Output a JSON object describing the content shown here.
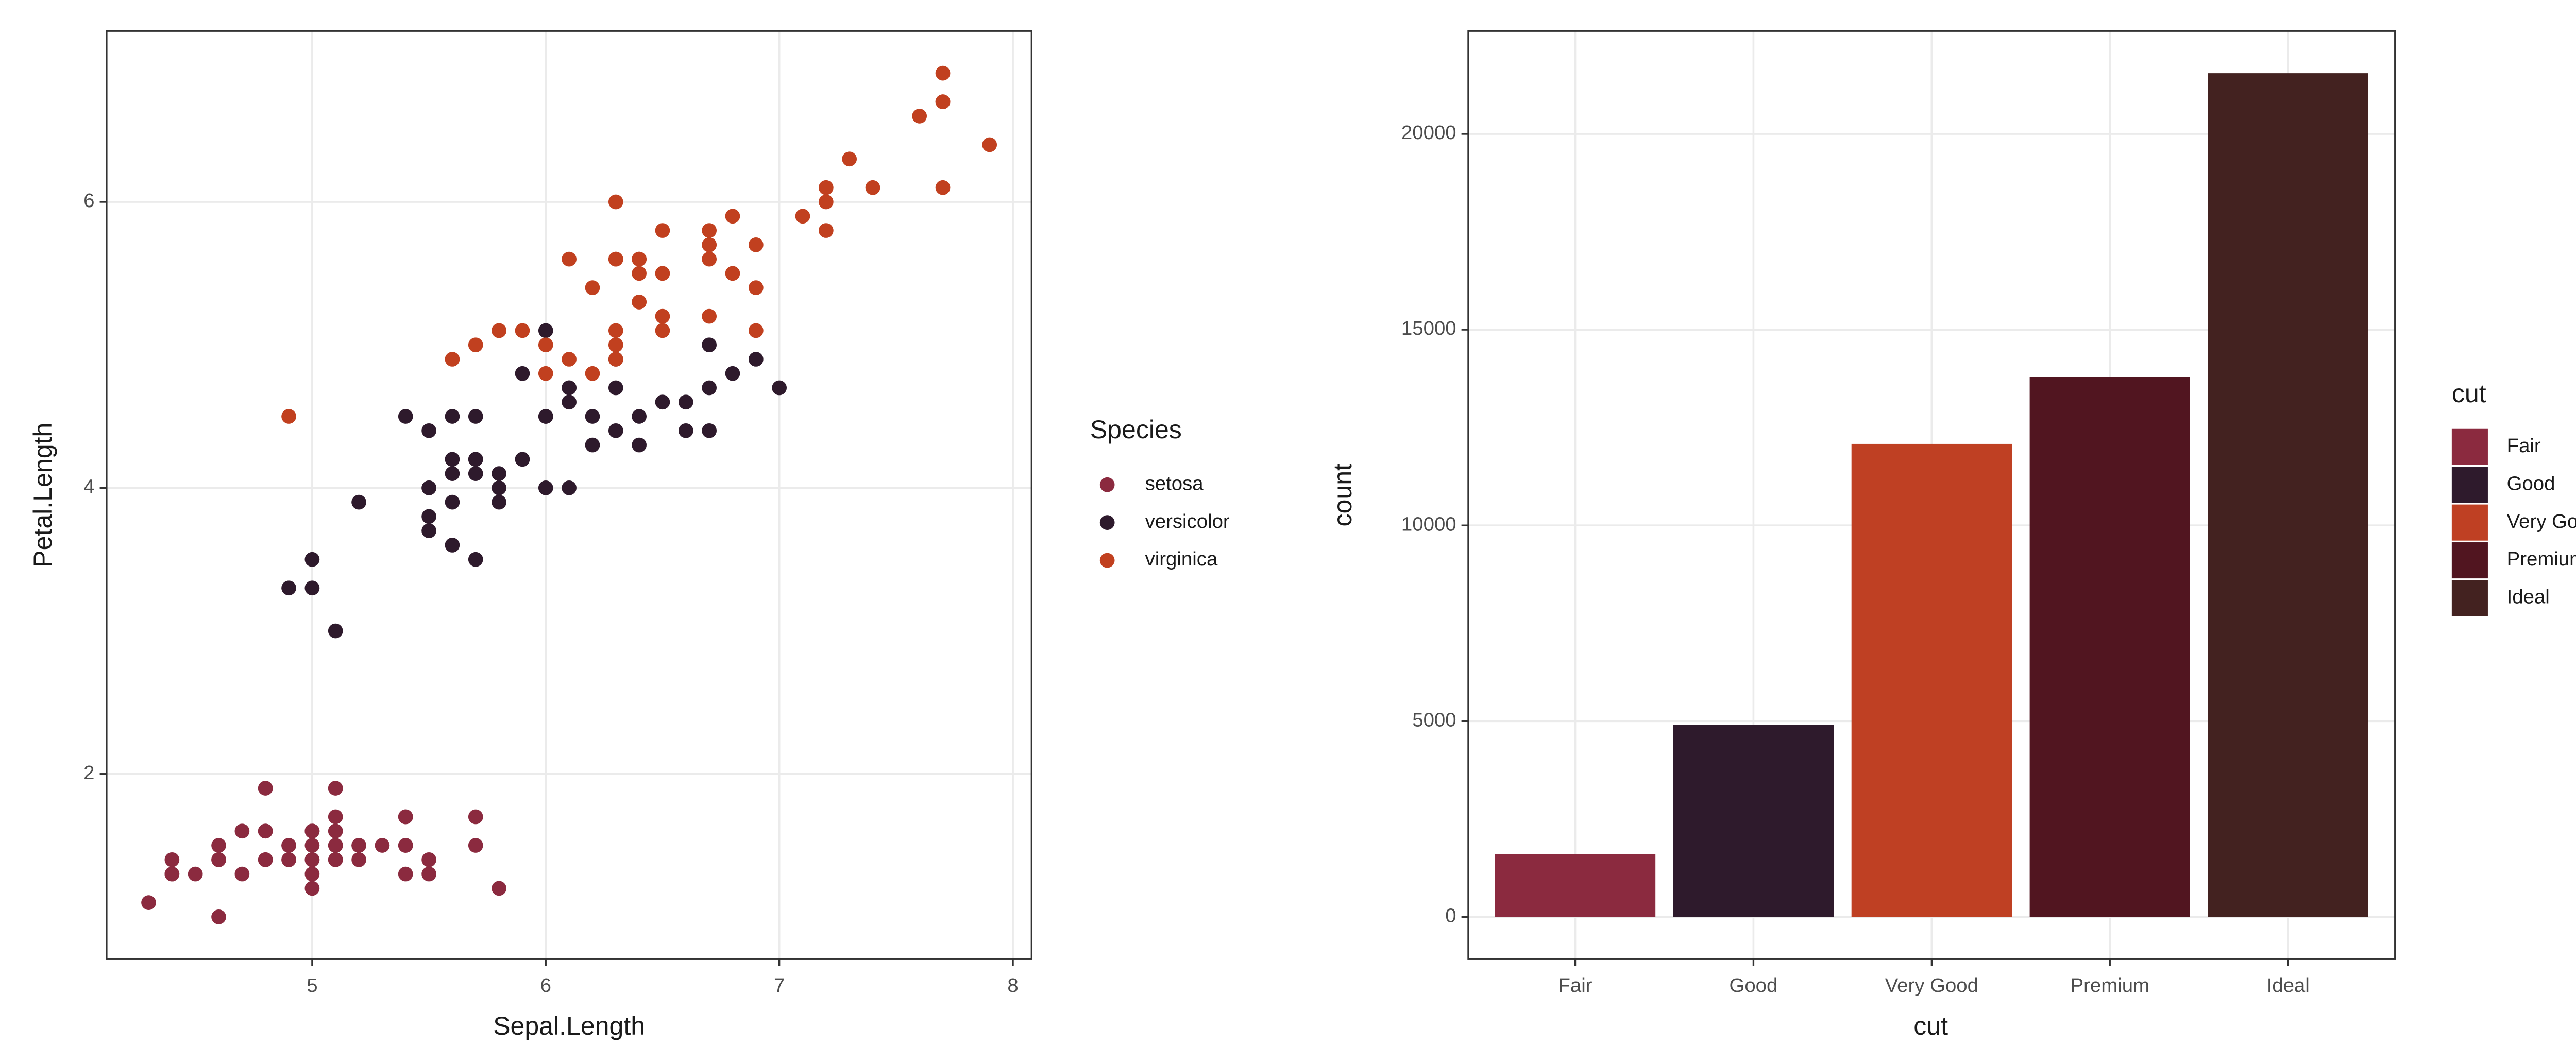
{
  "chart_data": [
    {
      "type": "scatter",
      "xlabel": "Sepal.Length",
      "ylabel": "Petal.Length",
      "legend_title": "Species",
      "series": [
        {
          "name": "setosa",
          "color": "#8b2a3f",
          "x": [
            5.1,
            4.9,
            4.7,
            4.6,
            5.0,
            5.4,
            4.6,
            5.0,
            4.4,
            4.9,
            5.4,
            4.8,
            4.8,
            4.3,
            5.8,
            5.7,
            5.4,
            5.1,
            5.7,
            5.1,
            5.4,
            5.1,
            4.6,
            5.1,
            4.8,
            5.0,
            5.0,
            5.2,
            5.2,
            4.7,
            4.8,
            5.4,
            5.2,
            5.5,
            4.9,
            5.0,
            5.5,
            4.9,
            4.4,
            5.1,
            5.0,
            4.5,
            4.4,
            5.0,
            5.1,
            4.8,
            5.1,
            4.6,
            5.3,
            5.0
          ],
          "y": [
            1.4,
            1.4,
            1.3,
            1.5,
            1.4,
            1.7,
            1.4,
            1.5,
            1.4,
            1.5,
            1.5,
            1.6,
            1.4,
            1.1,
            1.2,
            1.5,
            1.3,
            1.4,
            1.7,
            1.5,
            1.7,
            1.5,
            1.0,
            1.7,
            1.9,
            1.6,
            1.6,
            1.5,
            1.4,
            1.6,
            1.6,
            1.5,
            1.5,
            1.4,
            1.5,
            1.2,
            1.3,
            1.4,
            1.3,
            1.5,
            1.3,
            1.3,
            1.3,
            1.6,
            1.9,
            1.4,
            1.6,
            1.4,
            1.5,
            1.4
          ]
        },
        {
          "name": "versicolor",
          "color": "#2e1a2c",
          "x": [
            7.0,
            6.4,
            6.9,
            5.5,
            6.5,
            5.7,
            6.3,
            4.9,
            6.6,
            5.2,
            5.0,
            5.9,
            6.0,
            6.1,
            5.6,
            6.7,
            5.6,
            5.8,
            6.2,
            5.6,
            5.9,
            6.1,
            6.3,
            6.1,
            6.4,
            6.6,
            6.8,
            6.7,
            6.0,
            5.7,
            5.5,
            5.5,
            5.8,
            6.0,
            5.4,
            6.0,
            6.7,
            6.3,
            5.6,
            5.5,
            5.5,
            6.1,
            5.8,
            5.0,
            5.6,
            5.7,
            5.7,
            6.2,
            5.1,
            5.7
          ],
          "y": [
            4.7,
            4.5,
            4.9,
            4.0,
            4.6,
            4.5,
            4.7,
            3.3,
            4.6,
            3.9,
            3.5,
            4.2,
            4.0,
            4.7,
            3.6,
            4.4,
            4.5,
            4.1,
            4.5,
            3.9,
            4.8,
            4.0,
            4.9,
            4.7,
            4.3,
            4.4,
            4.8,
            5.0,
            4.5,
            3.5,
            3.8,
            3.7,
            3.9,
            5.1,
            4.5,
            4.5,
            4.7,
            4.4,
            4.1,
            4.0,
            4.4,
            4.6,
            4.0,
            3.3,
            4.2,
            4.2,
            4.2,
            4.3,
            3.0,
            4.1
          ]
        },
        {
          "name": "virginica",
          "color": "#c1401f",
          "x": [
            6.3,
            5.8,
            7.1,
            6.3,
            6.5,
            7.6,
            4.9,
            7.3,
            6.7,
            7.2,
            6.5,
            6.4,
            6.8,
            5.7,
            5.8,
            6.4,
            6.5,
            7.7,
            7.7,
            6.0,
            6.9,
            5.6,
            7.7,
            6.3,
            6.7,
            7.2,
            6.2,
            6.1,
            6.4,
            7.2,
            7.4,
            7.9,
            6.4,
            6.3,
            6.1,
            7.7,
            6.3,
            6.4,
            6.0,
            6.9,
            6.7,
            6.9,
            5.8,
            6.8,
            6.7,
            6.7,
            6.3,
            6.5,
            6.2,
            5.9
          ],
          "y": [
            6.0,
            5.1,
            5.9,
            5.6,
            5.8,
            6.6,
            4.5,
            6.3,
            5.8,
            6.1,
            5.1,
            5.3,
            5.5,
            5.0,
            5.1,
            5.3,
            5.5,
            6.7,
            6.9,
            5.0,
            5.7,
            4.9,
            6.7,
            4.9,
            5.7,
            6.0,
            4.8,
            4.9,
            5.6,
            5.8,
            6.1,
            6.4,
            5.6,
            5.1,
            5.6,
            6.1,
            5.6,
            5.5,
            4.8,
            5.4,
            5.6,
            5.1,
            5.1,
            5.9,
            5.7,
            5.2,
            5.0,
            5.2,
            5.4,
            5.1
          ]
        }
      ],
      "xlim": [
        4.12,
        8.08
      ],
      "ylim": [
        0.705,
        7.195
      ],
      "xticks": [
        5,
        6,
        7,
        8
      ],
      "yticks": [
        2,
        4,
        6
      ],
      "grid": true
    },
    {
      "type": "bar",
      "xlabel": "cut",
      "ylabel": "count",
      "legend_title": "cut",
      "categories": [
        "Fair",
        "Good",
        "Very Good",
        "Premium",
        "Ideal"
      ],
      "values": [
        1610,
        4906,
        12082,
        13791,
        21551
      ],
      "colors": [
        "#8b2a3f",
        "#2e1a2c",
        "#bf4023",
        "#511520",
        "#432220"
      ],
      "ylim": [
        -1077.55,
        22628.55
      ],
      "yticks": [
        0,
        5000,
        10000,
        15000,
        20000
      ],
      "grid": true
    }
  ]
}
